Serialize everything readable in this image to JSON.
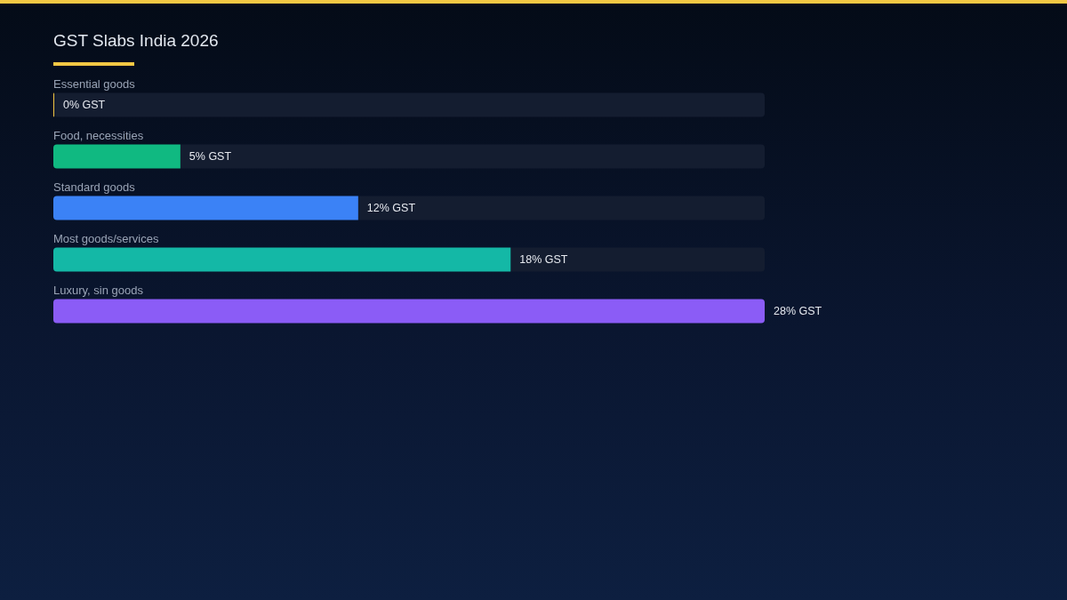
{
  "chart_data": {
    "type": "bar",
    "orientation": "horizontal",
    "stacked": true,
    "title": "GST Slabs India 2026",
    "categories": [
      "Essential goods",
      "Food, necessities",
      "Standard goods",
      "Most goods/services",
      "Luxury, sin goods"
    ],
    "series": [
      {
        "colors": [
          "#f3c844",
          "#10b981",
          "#3b82f6",
          "#14b8a6",
          "#8b5cf6"
        ],
        "values": [
          0,
          5,
          12,
          18,
          28
        ],
        "value_labels": [
          "0% GST",
          "5% GST",
          "12% GST",
          "18% GST",
          "28% GST"
        ]
      },
      {
        "color": "#141d30",
        "values": [
          28,
          23,
          16,
          10,
          0
        ]
      }
    ]
  }
}
